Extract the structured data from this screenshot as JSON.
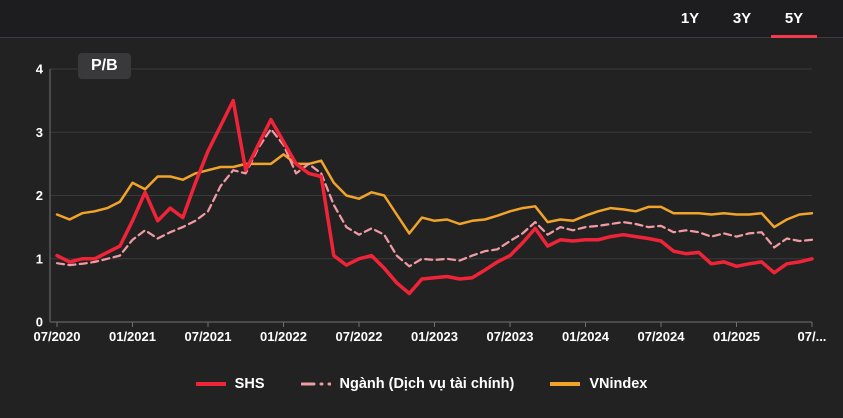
{
  "top_bar": {
    "ranges": [
      "1Y",
      "3Y",
      "5Y"
    ],
    "active_range": "5Y"
  },
  "chart_data": {
    "type": "line",
    "title": "P/B",
    "ylim": [
      0,
      4
    ],
    "y_ticks": [
      0,
      1,
      2,
      3,
      4
    ],
    "grid": "horizontal",
    "legend_position": "bottom",
    "x_months": [
      "07/2020",
      "08/2020",
      "09/2020",
      "10/2020",
      "11/2020",
      "12/2020",
      "01/2021",
      "02/2021",
      "03/2021",
      "04/2021",
      "05/2021",
      "06/2021",
      "07/2021",
      "08/2021",
      "09/2021",
      "10/2021",
      "11/2021",
      "12/2021",
      "01/2022",
      "02/2022",
      "03/2022",
      "04/2022",
      "05/2022",
      "06/2022",
      "07/2022",
      "08/2022",
      "09/2022",
      "10/2022",
      "11/2022",
      "12/2022",
      "01/2023",
      "02/2023",
      "03/2023",
      "04/2023",
      "05/2023",
      "06/2023",
      "07/2023",
      "08/2023",
      "09/2023",
      "10/2023",
      "11/2023",
      "12/2023",
      "01/2024",
      "02/2024",
      "03/2024",
      "04/2024",
      "05/2024",
      "06/2024",
      "07/2024",
      "08/2024",
      "09/2024",
      "10/2024",
      "11/2024",
      "12/2024",
      "01/2025",
      "02/2025",
      "03/2025",
      "04/2025",
      "05/2025",
      "06/2025",
      "07/2025"
    ],
    "x_ticks": [
      {
        "index": 0,
        "label": "07/2020"
      },
      {
        "index": 6,
        "label": "01/2021"
      },
      {
        "index": 12,
        "label": "07/2021"
      },
      {
        "index": 18,
        "label": "01/2022"
      },
      {
        "index": 24,
        "label": "07/2022"
      },
      {
        "index": 30,
        "label": "01/2023"
      },
      {
        "index": 36,
        "label": "07/2023"
      },
      {
        "index": 42,
        "label": "01/2024"
      },
      {
        "index": 48,
        "label": "07/2024"
      },
      {
        "index": 54,
        "label": "01/2025"
      },
      {
        "index": 60,
        "label": "07/..."
      }
    ],
    "series": [
      {
        "name": "SHS",
        "color": "#f02438",
        "style": "solid",
        "width": 3.5,
        "values": [
          1.05,
          0.95,
          1.0,
          1.0,
          1.1,
          1.2,
          1.6,
          2.05,
          1.6,
          1.8,
          1.65,
          2.2,
          2.7,
          3.1,
          3.5,
          2.4,
          2.8,
          3.2,
          2.85,
          2.5,
          2.35,
          2.3,
          1.05,
          0.9,
          1.0,
          1.05,
          0.85,
          0.62,
          0.45,
          0.68,
          0.7,
          0.72,
          0.68,
          0.7,
          0.82,
          0.95,
          1.05,
          1.25,
          1.48,
          1.2,
          1.3,
          1.28,
          1.3,
          1.3,
          1.35,
          1.38,
          1.35,
          1.32,
          1.28,
          1.12,
          1.08,
          1.1,
          0.92,
          0.95,
          0.88,
          0.92,
          0.95,
          0.78,
          0.92,
          0.95,
          1.0
        ]
      },
      {
        "name": "Ngành (Dịch vụ tài chính)",
        "color": "#f29aa2",
        "style": "dashed",
        "width": 2.25,
        "values": [
          0.93,
          0.9,
          0.92,
          0.95,
          1.0,
          1.05,
          1.3,
          1.45,
          1.32,
          1.42,
          1.5,
          1.6,
          1.75,
          2.15,
          2.4,
          2.35,
          2.75,
          3.05,
          2.8,
          2.35,
          2.5,
          2.35,
          1.85,
          1.5,
          1.38,
          1.48,
          1.38,
          1.05,
          0.88,
          1.0,
          0.98,
          1.0,
          0.97,
          1.05,
          1.12,
          1.15,
          1.28,
          1.4,
          1.58,
          1.38,
          1.5,
          1.45,
          1.5,
          1.52,
          1.55,
          1.58,
          1.55,
          1.5,
          1.52,
          1.42,
          1.45,
          1.42,
          1.35,
          1.4,
          1.35,
          1.4,
          1.42,
          1.18,
          1.32,
          1.28,
          1.3
        ]
      },
      {
        "name": "VNindex",
        "color": "#f2a42a",
        "style": "solid",
        "width": 2.5,
        "values": [
          1.7,
          1.62,
          1.72,
          1.75,
          1.8,
          1.9,
          2.2,
          2.1,
          2.3,
          2.3,
          2.25,
          2.35,
          2.4,
          2.45,
          2.45,
          2.5,
          2.5,
          2.5,
          2.65,
          2.5,
          2.5,
          2.55,
          2.2,
          2.0,
          1.95,
          2.05,
          2.0,
          1.7,
          1.4,
          1.65,
          1.6,
          1.62,
          1.55,
          1.6,
          1.62,
          1.68,
          1.75,
          1.8,
          1.83,
          1.58,
          1.62,
          1.6,
          1.68,
          1.75,
          1.8,
          1.78,
          1.75,
          1.82,
          1.82,
          1.72,
          1.72,
          1.72,
          1.7,
          1.72,
          1.7,
          1.7,
          1.72,
          1.5,
          1.62,
          1.7,
          1.72
        ]
      }
    ]
  },
  "colors": {
    "accent_red": "#f23a4e",
    "background": "#222223",
    "top_bar_bg": "#1d1d1f",
    "grid": "#3a3a3c",
    "axis": "#717174",
    "text": "#ffffff",
    "badge_bg": "#39393b"
  }
}
